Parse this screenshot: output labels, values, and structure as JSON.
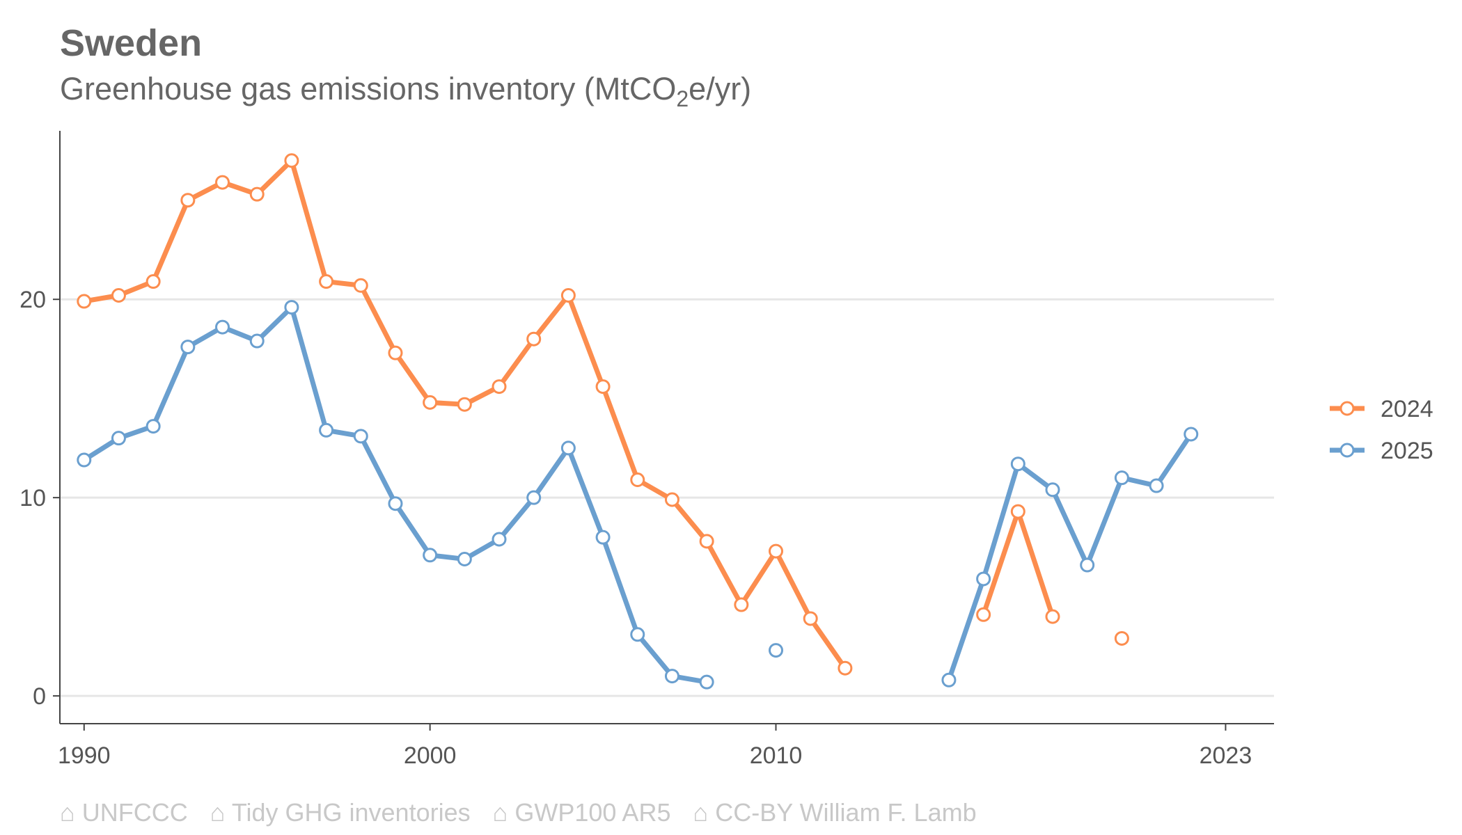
{
  "header": {
    "title": "Sweden",
    "subtitle_main": "Greenhouse gas emissions inventory (MtCO",
    "subtitle_sub": "2",
    "subtitle_end": "e/yr)"
  },
  "footer": {
    "items": [
      "⌂ UNFCCC",
      "⌂ Tidy GHG inventories",
      "⌂ GWP100 AR5",
      "⌂ CC-BY William F. Lamb"
    ]
  },
  "colors": {
    "series_2024": "#fc8d4e",
    "series_2025": "#6a9fcf",
    "grid": "#e6e6e6",
    "text": "#666666"
  },
  "chart_data": {
    "type": "line",
    "title": "Sweden",
    "subtitle": "Greenhouse gas emissions inventory (MtCO2e/yr)",
    "xlabel": "",
    "ylabel": "",
    "xlim": [
      1989.3,
      2024.4
    ],
    "ylim": [
      -1.4,
      28.5
    ],
    "x_ticks": [
      1990,
      2000,
      2010,
      2023
    ],
    "y_ticks": [
      0,
      10,
      20
    ],
    "grid": "horizontal",
    "legend_position": "right",
    "series": [
      {
        "name": "2024",
        "color": "#fc8d4e",
        "x": [
          1990,
          1991,
          1992,
          1993,
          1994,
          1995,
          1996,
          1997,
          1998,
          1999,
          2000,
          2001,
          2002,
          2003,
          2004,
          2005,
          2006,
          2007,
          2008,
          2009,
          2010,
          2011,
          2012,
          2013,
          2014,
          2015,
          2016,
          2017,
          2018,
          2019,
          2020,
          2021,
          2022,
          2023
        ],
        "values": [
          19.9,
          20.2,
          20.9,
          25.0,
          25.9,
          25.3,
          27.0,
          20.9,
          20.7,
          17.3,
          14.8,
          14.7,
          15.6,
          18.0,
          20.2,
          15.6,
          10.9,
          9.9,
          7.8,
          4.6,
          7.3,
          3.9,
          1.4,
          null,
          null,
          null,
          4.1,
          9.3,
          4.0,
          null,
          2.9,
          null,
          null,
          null
        ]
      },
      {
        "name": "2025",
        "color": "#6a9fcf",
        "x": [
          1990,
          1991,
          1992,
          1993,
          1994,
          1995,
          1996,
          1997,
          1998,
          1999,
          2000,
          2001,
          2002,
          2003,
          2004,
          2005,
          2006,
          2007,
          2008,
          2009,
          2010,
          2011,
          2012,
          2013,
          2014,
          2015,
          2016,
          2017,
          2018,
          2019,
          2020,
          2021,
          2022,
          2023
        ],
        "values": [
          11.9,
          13.0,
          13.6,
          17.6,
          18.6,
          17.9,
          19.6,
          13.4,
          13.1,
          9.7,
          7.1,
          6.9,
          7.9,
          10.0,
          12.5,
          8.0,
          3.1,
          1.0,
          0.7,
          null,
          2.3,
          null,
          null,
          null,
          null,
          0.8,
          5.9,
          11.7,
          10.4,
          6.6,
          11.0,
          10.6,
          13.2,
          null
        ]
      }
    ]
  }
}
